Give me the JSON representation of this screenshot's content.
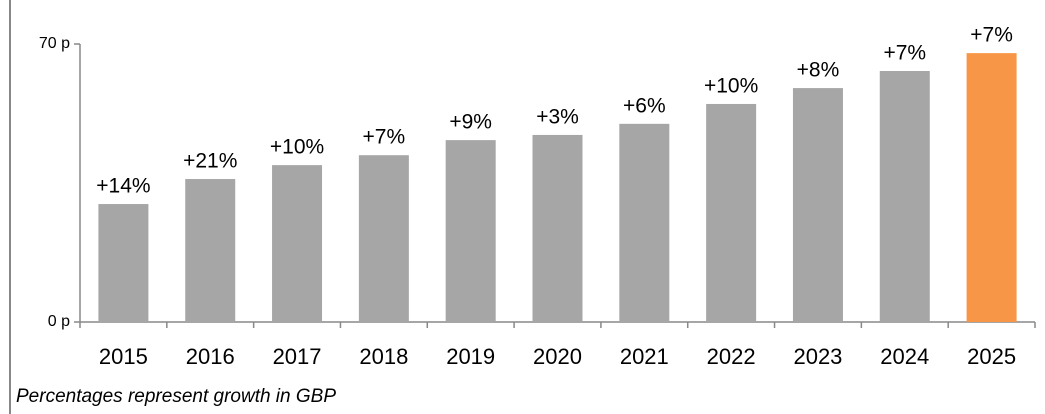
{
  "chart_data": {
    "type": "bar",
    "categories": [
      "2015",
      "2016",
      "2017",
      "2018",
      "2019",
      "2020",
      "2021",
      "2022",
      "2023",
      "2024",
      "2025"
    ],
    "values": [
      29.7,
      36,
      39.5,
      42,
      45.8,
      47.1,
      49.9,
      54.9,
      58.9,
      63.2,
      67.7
    ],
    "value_labels": [
      "+14%",
      "+21%",
      "+10%",
      "+7%",
      "+9%",
      "+3%",
      "+6%",
      "+10%",
      "+8%",
      "+7%",
      "+7%"
    ],
    "colors": [
      "#a6a6a6",
      "#a6a6a6",
      "#a6a6a6",
      "#a6a6a6",
      "#a6a6a6",
      "#a6a6a6",
      "#a6a6a6",
      "#a6a6a6",
      "#a6a6a6",
      "#a6a6a6",
      "#f79646"
    ],
    "ylim": [
      0,
      70
    ],
    "yticks": [
      {
        "value": 0,
        "label": "0 p"
      },
      {
        "value": 70,
        "label": "70 p"
      }
    ],
    "grid": false,
    "note": "Percentages represent growth in GBP"
  }
}
